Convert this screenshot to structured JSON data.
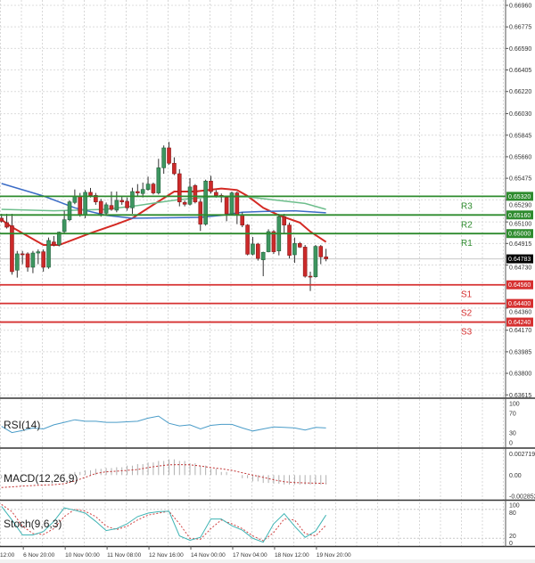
{
  "chart_data": [
    {
      "type": "candlestick",
      "panel": "price",
      "ylim": [
        0.636,
        0.67006
      ],
      "grid": true,
      "y_tick_labels": [
        "0.66960",
        "0.66775",
        "0.66590",
        "0.66405",
        "0.66220",
        "0.66030",
        "0.65845",
        "0.65660",
        "0.65475",
        "0.65290",
        "0.65100",
        "0.64915",
        "0.64730",
        "0.64360",
        "0.64170",
        "0.63985",
        "0.63800",
        "0.63615"
      ],
      "ohlc": [
        [
          0.65132,
          0.6517,
          0.65094,
          0.65106
        ],
        [
          0.65094,
          0.6517,
          0.65043,
          0.65055
        ],
        [
          0.65068,
          0.6517,
          0.64647,
          0.64673
        ],
        [
          0.64686,
          0.64851,
          0.64622,
          0.64826
        ],
        [
          0.64826,
          0.64851,
          0.64737,
          0.64818
        ],
        [
          0.64826,
          0.64839,
          0.64673,
          0.64711
        ],
        [
          0.64711,
          0.64851,
          0.6466,
          0.64833
        ],
        [
          0.64833,
          0.64864,
          0.64737,
          0.64844
        ],
        [
          0.64844,
          0.64864,
          0.64673,
          0.64711
        ],
        [
          0.64711,
          0.64966,
          0.64698,
          0.64941
        ],
        [
          0.64928,
          0.64979,
          0.6489,
          0.64902
        ],
        [
          0.64902,
          0.65017,
          0.6489,
          0.65012
        ],
        [
          0.65017,
          0.65196,
          0.65004,
          0.65119
        ],
        [
          0.65119,
          0.65285,
          0.65106,
          0.65272
        ],
        [
          0.65267,
          0.65379,
          0.65252,
          0.65323
        ],
        [
          0.65323,
          0.65349,
          0.65145,
          0.65157
        ],
        [
          0.65157,
          0.65374,
          0.65132,
          0.65354
        ],
        [
          0.65354,
          0.65392,
          0.6531,
          0.65328
        ],
        [
          0.65328,
          0.65349,
          0.65247,
          0.65272
        ],
        [
          0.65277,
          0.65298,
          0.65145,
          0.65175
        ],
        [
          0.65175,
          0.65267,
          0.65157,
          0.65247
        ],
        [
          0.65241,
          0.65361,
          0.65196,
          0.65208
        ],
        [
          0.65201,
          0.65361,
          0.65183,
          0.65285
        ],
        [
          0.65285,
          0.65323,
          0.65247,
          0.65272
        ],
        [
          0.65277,
          0.6531,
          0.65196,
          0.65221
        ],
        [
          0.65221,
          0.65394,
          0.6517,
          0.65361
        ],
        [
          0.65361,
          0.65425,
          0.65323,
          0.65349
        ],
        [
          0.65344,
          0.65438,
          0.6531,
          0.65379
        ],
        [
          0.65379,
          0.65489,
          0.65369,
          0.65425
        ],
        [
          0.65425,
          0.65438,
          0.65336,
          0.65349
        ],
        [
          0.65349,
          0.65642,
          0.65336,
          0.65565
        ],
        [
          0.65565,
          0.65757,
          0.65514,
          0.65736
        ],
        [
          0.65736,
          0.65787,
          0.65591,
          0.65604
        ],
        [
          0.65604,
          0.65655,
          0.65502,
          0.65514
        ],
        [
          0.65514,
          0.65553,
          0.65234,
          0.65272
        ],
        [
          0.65267,
          0.65285,
          0.65234,
          0.65252
        ],
        [
          0.65252,
          0.65476,
          0.65241,
          0.654
        ],
        [
          0.65412,
          0.65425,
          0.65259,
          0.65272
        ],
        [
          0.65272,
          0.65298,
          0.65022,
          0.65081
        ],
        [
          0.65081,
          0.65463,
          0.65068,
          0.65451
        ],
        [
          0.65451,
          0.65496,
          0.65344,
          0.65361
        ],
        [
          0.65354,
          0.65374,
          0.6531,
          0.65328
        ],
        [
          0.65328,
          0.65344,
          0.65267,
          0.65318
        ],
        [
          0.6531,
          0.65323,
          0.65106,
          0.6517
        ],
        [
          0.6517,
          0.65361,
          0.65157,
          0.65349
        ],
        [
          0.65349,
          0.65361,
          0.65081,
          0.65157
        ],
        [
          0.65157,
          0.65183,
          0.65055,
          0.65073
        ],
        [
          0.65073,
          0.65081,
          0.64813,
          0.64823
        ],
        [
          0.64823,
          0.64971,
          0.64813,
          0.6491
        ],
        [
          0.6491,
          0.6492,
          0.64768,
          0.64787
        ],
        [
          0.64775,
          0.64844,
          0.64634,
          0.64839
        ],
        [
          0.64844,
          0.65037,
          0.64839,
          0.65017
        ],
        [
          0.65017,
          0.6503,
          0.64826,
          0.64844
        ],
        [
          0.64851,
          0.6517,
          0.64813,
          0.65145
        ],
        [
          0.65145,
          0.6517,
          0.65004,
          0.65073
        ],
        [
          0.65073,
          0.65094,
          0.64787,
          0.64813
        ],
        [
          0.64818,
          0.64966,
          0.64749,
          0.64915
        ],
        [
          0.64915,
          0.64928,
          0.64877,
          0.64884
        ],
        [
          0.64884,
          0.64902,
          0.64622,
          0.64634
        ],
        [
          0.64634,
          0.64673,
          0.64507,
          0.64629
        ],
        [
          0.64629,
          0.64902,
          0.64622,
          0.6489
        ],
        [
          0.6489,
          0.64902,
          0.64737,
          0.648
        ],
        [
          0.648,
          0.64869,
          0.64762,
          0.64783
        ]
      ],
      "moving_averages": [
        {
          "color": "#d42a24",
          "points": [
            [
              0,
              0.65119
            ],
            [
              2,
              0.65055
            ],
            [
              8,
              0.64902
            ],
            [
              11,
              0.64902
            ],
            [
              17,
              0.65004
            ],
            [
              22,
              0.65081
            ],
            [
              25,
              0.65132
            ],
            [
              29,
              0.65247
            ],
            [
              33,
              0.65361
            ],
            [
              37,
              0.65361
            ],
            [
              42,
              0.65387
            ],
            [
              45,
              0.65374
            ],
            [
              47,
              0.65323
            ],
            [
              50,
              0.65221
            ],
            [
              53,
              0.65157
            ],
            [
              57,
              0.65094
            ],
            [
              59,
              0.65017
            ],
            [
              62,
              0.64928
            ]
          ]
        },
        {
          "color": "#3b6cc6",
          "points": [
            [
              0,
              0.6543
            ],
            [
              8,
              0.65323
            ],
            [
              14,
              0.65221
            ],
            [
              20,
              0.65157
            ],
            [
              25,
              0.65132
            ],
            [
              38,
              0.65139
            ],
            [
              42,
              0.65157
            ],
            [
              46,
              0.65183
            ],
            [
              50,
              0.6519
            ],
            [
              56,
              0.65196
            ],
            [
              62,
              0.65178
            ]
          ]
        },
        {
          "color": "#6dbe8c",
          "points": [
            [
              0,
              0.65208
            ],
            [
              10,
              0.65196
            ],
            [
              20,
              0.65208
            ],
            [
              26,
              0.65241
            ],
            [
              30,
              0.65267
            ],
            [
              34,
              0.65292
            ],
            [
              40,
              0.65315
            ],
            [
              47,
              0.65315
            ],
            [
              53,
              0.65285
            ],
            [
              58,
              0.65259
            ],
            [
              62,
              0.65208
            ]
          ]
        }
      ],
      "levels": [
        {
          "label": "R3",
          "value": "0.65320",
          "color": "#2e8b2e"
        },
        {
          "label": "R2",
          "value": "0.65160",
          "color": "#2e8b2e"
        },
        {
          "label": "R1",
          "value": "0.65000",
          "color": "#2e8b2e"
        },
        {
          "label": "S1",
          "value": "0.64560",
          "color": "#d63030"
        },
        {
          "label": "S2",
          "value": "0.64400",
          "color": "#d63030"
        },
        {
          "label": "S3",
          "value": "0.64240",
          "color": "#d63030"
        }
      ],
      "current_price": "0.64783",
      "x_tick_labels": [
        {
          "bar": -4,
          "label": "12:00"
        },
        {
          "bar": 4,
          "label": "6 Nov 20:00"
        },
        {
          "bar": 12,
          "label": "10 Nov 00:00"
        },
        {
          "bar": 20,
          "label": "11 Nov 08:00"
        },
        {
          "bar": 28,
          "label": "12 Nov 16:00"
        },
        {
          "bar": 36,
          "label": "14 Nov 00:00"
        },
        {
          "bar": 44,
          "label": "17 Nov 04:00"
        },
        {
          "bar": 52,
          "label": "18 Nov 12:00"
        },
        {
          "bar": 60,
          "label": "19 Nov 20:00"
        }
      ]
    },
    {
      "type": "line",
      "panel": "rsi",
      "title": "RSI(14)",
      "ylim": [
        0,
        100
      ],
      "y_tick_labels": [
        "100",
        "70",
        "30",
        "0"
      ],
      "series": [
        {
          "color": "#4a9cc8",
          "values": [
            48,
            36,
            40,
            45,
            43,
            51,
            56,
            61,
            58,
            58,
            56,
            56,
            57,
            58,
            64,
            68,
            54,
            49,
            51,
            43,
            50,
            52,
            52,
            45,
            39,
            43,
            47,
            46,
            45,
            41,
            46,
            45
          ]
        }
      ]
    },
    {
      "type": "bar",
      "panel": "macd",
      "title": "MACD(12,26,9)",
      "ylim": [
        -0.002852,
        0.002719
      ],
      "y_tick_labels": [
        "0.002719",
        "0.00",
        "-0.002852"
      ],
      "histogram": [
        -0.0004,
        -0.0002,
        -0.0002,
        -0.0001,
        0,
        0.0001,
        0.0002,
        0.0004,
        0.0006,
        0.0008,
        0.0009,
        0.001,
        0.0012,
        0.0014,
        0.0016,
        0.0018,
        0.002,
        0.0018,
        0.0015,
        0.0012,
        0.0008,
        0.0004,
        0.0,
        -0.0004,
        -0.0008,
        -0.001,
        -0.0011,
        -0.0012,
        -0.0012,
        -0.0012,
        -0.0012,
        -0.0012
      ],
      "signal": [
        -0.00158,
        -0.0015,
        -0.0014,
        -0.00132,
        -0.00127,
        -0.00122,
        -0.0011,
        -0.00075,
        -0.0003,
        0.0002,
        0.00042,
        0.0005,
        0.0006,
        0.0007,
        0.00095,
        0.00115,
        0.0013,
        0.00132,
        0.0013,
        0.00115,
        0.00095,
        0.0008,
        0.0006,
        0.0003,
        0.0,
        -0.0003,
        -0.0006,
        -0.00085,
        -0.00095,
        -0.001,
        -0.00103,
        -0.00105
      ]
    },
    {
      "type": "line",
      "panel": "stoch",
      "title": "Stoch(9,6,3)",
      "ylim": [
        0,
        100
      ],
      "y_tick_labels": [
        "100",
        "80",
        "20",
        "0"
      ],
      "series": [
        {
          "color": "#3fb4b4",
          "values": [
            86,
            58,
            27,
            27,
            34,
            55,
            83,
            78,
            72,
            55,
            36,
            40,
            50,
            65,
            72,
            75,
            76,
            25,
            16,
            22,
            60,
            60,
            46,
            37,
            20,
            12,
            50,
            71,
            45,
            22,
            35,
            68
          ]
        },
        {
          "color": "#d04040",
          "dashed": true,
          "values": [
            90,
            75,
            45,
            30,
            28,
            40,
            65,
            80,
            76,
            65,
            45,
            38,
            45,
            58,
            68,
            72,
            76,
            50,
            20,
            18,
            40,
            58,
            50,
            40,
            25,
            15,
            32,
            60,
            58,
            30,
            25,
            47
          ]
        }
      ]
    }
  ]
}
